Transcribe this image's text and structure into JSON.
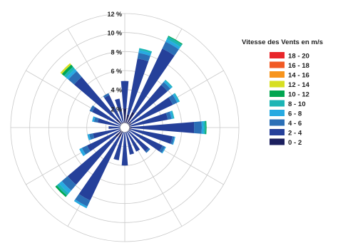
{
  "chart_data": {
    "type": "polar-stacked-bar",
    "title": "",
    "radial_axis": {
      "min": 0,
      "max": 12,
      "step": 2,
      "unit": "%",
      "tick_labels": [
        "2 %",
        "4 %",
        "6 %",
        "8 %",
        "10 %",
        "12 %"
      ]
    },
    "sector_count": 24,
    "legend": {
      "title": "Vitesse des Vents en m/s",
      "position": "right",
      "bins": [
        {
          "label": "18 - 20",
          "color": "#e8262a"
        },
        {
          "label": "16 - 18",
          "color": "#f15a24"
        },
        {
          "label": "14 - 16",
          "color": "#f7941d"
        },
        {
          "label": "12 - 14",
          "color": "#d7df23"
        },
        {
          "label": "10 - 12",
          "color": "#00a651"
        },
        {
          "label": "8 - 10",
          "color": "#1cb5b5"
        },
        {
          "label": "6 - 8",
          "color": "#27aae1"
        },
        {
          "label": "4 - 6",
          "color": "#2b6fb6"
        },
        {
          "label": "2 - 4",
          "color": "#25409a"
        },
        {
          "label": "0 - 2",
          "color": "#1b1f5e"
        }
      ]
    },
    "stack_order": [
      "0 - 2",
      "2 - 4",
      "4 - 6",
      "6 - 8",
      "8 - 10",
      "10 - 12",
      "12 - 14",
      "14 - 16",
      "16 - 18",
      "18 - 20"
    ],
    "sectors": [
      {
        "angle": 0,
        "segments": [
          2.0,
          2.9
        ]
      },
      {
        "angle": 15,
        "segments": [
          1.4,
          6.0,
          0.6,
          0.3,
          0.2
        ]
      },
      {
        "angle": 30,
        "segments": [
          1.8,
          7.4,
          0.8,
          0.3,
          0.3,
          0.1
        ]
      },
      {
        "angle": 45,
        "segments": [
          0.9,
          5.0,
          0.4,
          0.2,
          0.1
        ]
      },
      {
        "angle": 60,
        "segments": [
          0.8,
          4.8,
          0.5,
          0.2,
          0.1
        ]
      },
      {
        "angle": 75,
        "segments": [
          0.6,
          4.0,
          0.4,
          0.2,
          0.1
        ]
      },
      {
        "angle": 90,
        "segments": [
          0.8,
          6.5,
          0.8,
          0.2,
          0.2,
          0.1
        ]
      },
      {
        "angle": 105,
        "segments": [
          0.7,
          4.4,
          0.2,
          0.1
        ]
      },
      {
        "angle": 120,
        "segments": [
          0.6,
          3.8,
          0.3,
          0.1
        ]
      },
      {
        "angle": 135,
        "segments": [
          0.5,
          2.8,
          0.2
        ]
      },
      {
        "angle": 150,
        "segments": [
          0.5,
          2.3
        ]
      },
      {
        "angle": 165,
        "segments": [
          0.4,
          2.5
        ]
      },
      {
        "angle": 180,
        "segments": [
          0.5,
          3.5
        ]
      },
      {
        "angle": 195,
        "segments": [
          0.5,
          3.0
        ]
      },
      {
        "angle": 210,
        "segments": [
          1.2,
          7.3,
          0.7,
          0.2
        ]
      },
      {
        "angle": 225,
        "segments": [
          1.3,
          6.6,
          0.8,
          0.4,
          0.3,
          0.2
        ]
      },
      {
        "angle": 240,
        "segments": [
          0.6,
          3.8,
          0.6,
          0.3
        ]
      },
      {
        "angle": 255,
        "segments": [
          0.4,
          3.0,
          0.4,
          0.2
        ]
      },
      {
        "angle": 270,
        "segments": [
          0.3,
          1.4
        ]
      },
      {
        "angle": 285,
        "segments": [
          0.4,
          2.5,
          0.4,
          0.2
        ]
      },
      {
        "angle": 300,
        "segments": [
          0.5,
          3.3,
          0.3
        ]
      },
      {
        "angle": 315,
        "segments": [
          1.2,
          5.8,
          0.8,
          0.3,
          0.3,
          0.3,
          0.2
        ]
      },
      {
        "angle": 330,
        "segments": [
          0.6,
          3.2,
          0.2
        ]
      },
      {
        "angle": 345,
        "segments": [
          0.6,
          2.5
        ]
      }
    ]
  }
}
